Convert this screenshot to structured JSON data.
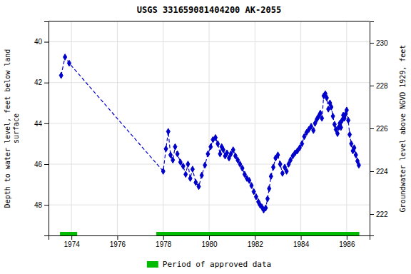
{
  "chart_data": {
    "type": "line",
    "title": "USGS 331659081404200 AK-2055",
    "ylabel": "Depth to water level, feet below land\nsurface",
    "y2label": "Groundwater level above NGVD 1929, feet",
    "xlim": [
      1973.0,
      1987.0
    ],
    "xticks": [
      1974,
      1976,
      1978,
      1980,
      1982,
      1984,
      1986
    ],
    "ylim": [
      49.5,
      39.0
    ],
    "yticks": [
      40,
      42,
      44,
      46,
      48
    ],
    "y2lim": [
      221.0,
      231.0
    ],
    "y2ticks": [
      230,
      228,
      226,
      224,
      222
    ],
    "grid": true,
    "legend": "bottom",
    "x": [
      1973.55,
      1973.72,
      1973.9,
      1978.0,
      1978.12,
      1978.22,
      1978.32,
      1978.42,
      1978.52,
      1978.62,
      1978.75,
      1978.87,
      1978.98,
      1979.08,
      1979.18,
      1979.28,
      1979.42,
      1979.55,
      1979.68,
      1979.82,
      1979.95,
      1980.07,
      1980.17,
      1980.28,
      1980.38,
      1980.48,
      1980.55,
      1980.62,
      1980.7,
      1980.78,
      1980.87,
      1980.95,
      1981.05,
      1981.15,
      1981.25,
      1981.35,
      1981.45,
      1981.55,
      1981.65,
      1981.75,
      1981.85,
      1981.95,
      1982.05,
      1982.15,
      1982.22,
      1982.3,
      1982.38,
      1982.47,
      1982.55,
      1982.62,
      1982.7,
      1982.8,
      1982.9,
      1983.0,
      1983.1,
      1983.2,
      1983.3,
      1983.38,
      1983.47,
      1983.55,
      1983.65,
      1983.75,
      1983.85,
      1983.95,
      1984.05,
      1984.15,
      1984.25,
      1984.35,
      1984.45,
      1984.55,
      1984.62,
      1984.7,
      1984.78,
      1984.85,
      1984.92,
      1985.0,
      1985.07,
      1985.13,
      1985.2,
      1985.27,
      1985.33,
      1985.4,
      1985.47,
      1985.53,
      1985.6,
      1985.65,
      1985.7,
      1985.75,
      1985.8,
      1985.85,
      1985.9,
      1985.95,
      1986.0,
      1986.07,
      1986.13,
      1986.2,
      1986.27,
      1986.33,
      1986.4,
      1986.47,
      1986.53
    ],
    "series": [
      {
        "color": "#0000cc",
        "line_style": "dashed",
        "marker": "diamond",
        "values": [
          41.65,
          40.75,
          41.05,
          46.35,
          45.25,
          44.4,
          45.55,
          45.8,
          45.15,
          45.5,
          45.9,
          46.1,
          46.5,
          46.0,
          46.7,
          46.25,
          46.9,
          47.1,
          46.55,
          46.05,
          45.5,
          45.15,
          44.8,
          44.7,
          45.0,
          45.5,
          45.15,
          45.3,
          45.6,
          45.45,
          45.7,
          45.5,
          45.3,
          45.6,
          45.8,
          46.0,
          46.2,
          46.5,
          46.7,
          46.8,
          47.05,
          47.35,
          47.6,
          47.85,
          48.0,
          48.1,
          48.25,
          48.15,
          47.7,
          47.2,
          46.6,
          46.15,
          45.7,
          45.55,
          46.0,
          46.45,
          46.15,
          46.35,
          46.0,
          45.8,
          45.6,
          45.45,
          45.35,
          45.2,
          45.0,
          44.65,
          44.45,
          44.3,
          44.15,
          44.35,
          44.0,
          43.8,
          43.65,
          43.5,
          43.75,
          42.65,
          42.55,
          42.75,
          43.3,
          43.0,
          43.2,
          43.65,
          44.05,
          44.3,
          44.5,
          44.2,
          44.0,
          44.2,
          43.85,
          43.6,
          43.75,
          43.55,
          43.35,
          43.85,
          44.55,
          45.0,
          45.35,
          45.2,
          45.55,
          45.85,
          46.05
        ]
      }
    ],
    "approved_periods": {
      "name": "Period of approved data",
      "color": "#00bb00",
      "ranges": [
        [
          1973.5,
          1974.25
        ],
        [
          1977.7,
          1986.55
        ]
      ]
    }
  }
}
